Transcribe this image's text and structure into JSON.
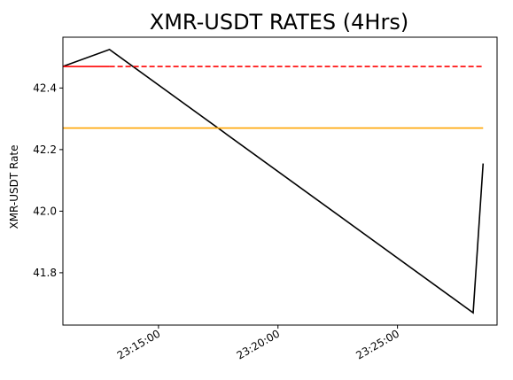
{
  "chart_data": {
    "type": "line",
    "title": "XMR-USDT RATES (4Hrs)",
    "xlabel": "",
    "ylabel": "XMR-USDT Rate",
    "x_axis": "time",
    "xlim": [
      "23:11:00",
      "23:29:10"
    ],
    "ylim": [
      41.63,
      42.565
    ],
    "x_ticks": [
      "23:15:00",
      "23:20:00",
      "23:25:00"
    ],
    "y_ticks": [
      41.8,
      42.0,
      42.2,
      42.4
    ],
    "grid": false,
    "series": [
      {
        "style": "solid",
        "color": "#000000",
        "x": [
          "23:11:00",
          "23:12:57",
          "23:28:10",
          "23:28:35"
        ],
        "y": [
          42.47,
          42.525,
          41.67,
          42.155
        ]
      },
      {
        "style": "solid",
        "color": "#ff0000",
        "x": [
          "23:11:00",
          "23:12:57"
        ],
        "y": [
          42.47,
          42.47
        ]
      },
      {
        "style": "dashed",
        "color": "#ff0000",
        "x": [
          "23:12:57",
          "23:28:35"
        ],
        "y": [
          42.47,
          42.47
        ]
      },
      {
        "style": "solid",
        "color": "#ffa500",
        "x": [
          "23:11:00",
          "23:28:35"
        ],
        "y": [
          42.27,
          42.27
        ]
      }
    ]
  }
}
